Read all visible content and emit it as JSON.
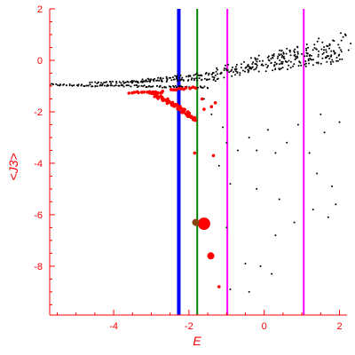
{
  "chart_data": {
    "type": "scatter",
    "xlabel": "E",
    "ylabel": "<J3>",
    "xlim": [
      -5.7,
      2.2
    ],
    "ylim": [
      -9.9,
      2.0
    ],
    "x_ticks": [
      -4,
      -2,
      0,
      2
    ],
    "y_ticks": [
      2,
      0,
      -2,
      -4,
      -6,
      -8
    ],
    "colors": {
      "axis": "#ff0000",
      "black_points": "#000000",
      "red_points": "#ff0000",
      "brown_point": "#8b4513",
      "line_blue": "#0000ff",
      "line_green": "#008000",
      "line_magenta": "#ff00ff"
    },
    "vertical_lines": [
      {
        "x": -2.27,
        "color": "#0000ff",
        "width": 4
      },
      {
        "x": -1.78,
        "color": "#008000",
        "width": 2
      },
      {
        "x": -0.98,
        "color": "#ff00ff",
        "width": 2
      },
      {
        "x": 1.05,
        "color": "#ff00ff",
        "width": 2
      }
    ],
    "series": [
      {
        "color": "#000000",
        "style": "band",
        "bands": [
          {
            "x0": -5.7,
            "y0": -0.95,
            "x1": -1.5,
            "y1": -1.05,
            "n": 110,
            "jitter": 0.04
          },
          {
            "x0": -4.6,
            "y0": -0.9,
            "x1": -1.2,
            "y1": -0.7,
            "n": 80,
            "jitter": 0.05
          },
          {
            "x0": -3.6,
            "y0": -0.85,
            "x1": -0.8,
            "y1": -0.4,
            "n": 70,
            "jitter": 0.06
          },
          {
            "x0": -1.4,
            "y0": -0.6,
            "x1": 2.1,
            "y1": 0.9,
            "n": 90,
            "jitter": 0.25
          },
          {
            "x0": -0.8,
            "y0": -0.4,
            "x1": 2.1,
            "y1": 0.1,
            "n": 90,
            "jitter": 0.18
          },
          {
            "x0": -0.3,
            "y0": -0.1,
            "x1": 2.1,
            "y1": 0.4,
            "n": 70,
            "jitter": 0.22
          }
        ],
        "points": [
          [
            -1.6,
            -1.5
          ],
          [
            -1.4,
            -2.1
          ],
          [
            -1.1,
            -2.6
          ],
          [
            -1.0,
            -3.2
          ],
          [
            -0.7,
            -3.5
          ],
          [
            -0.4,
            -3.0
          ],
          [
            -0.2,
            -3.5
          ],
          [
            0.1,
            -2.7
          ],
          [
            0.3,
            -3.6
          ],
          [
            0.6,
            -3.2
          ],
          [
            0.9,
            -2.5
          ],
          [
            1.5,
            -2.1
          ],
          [
            1.2,
            -3.6
          ],
          [
            1.6,
            -2.8
          ],
          [
            2.0,
            -2.4
          ],
          [
            -1.2,
            -4.1
          ],
          [
            -0.9,
            -4.8
          ],
          [
            -0.2,
            -5.0
          ],
          [
            0.4,
            -5.4
          ],
          [
            1.4,
            -4.4
          ],
          [
            1.8,
            -4.9
          ],
          [
            -1.0,
            -6.5
          ],
          [
            0.3,
            -6.8
          ],
          [
            1.3,
            -5.8
          ],
          [
            1.7,
            -6.1
          ],
          [
            -0.5,
            -7.9
          ],
          [
            -0.1,
            -8.0
          ],
          [
            0.2,
            -8.3
          ],
          [
            -0.9,
            -8.9
          ],
          [
            -0.4,
            -9.0
          ],
          [
            0.8,
            -6.3
          ],
          [
            1.9,
            -5.6
          ]
        ]
      },
      {
        "color": "#ff0000",
        "style": "cluster",
        "bands": [
          {
            "x0": -3.0,
            "y0": -1.25,
            "x1": -2.2,
            "y1": -1.9,
            "n": 60,
            "jitter": 0.06
          },
          {
            "x0": -2.2,
            "y0": -1.9,
            "x1": -1.85,
            "y1": -2.3,
            "n": 30,
            "jitter": 0.06
          },
          {
            "x0": -3.6,
            "y0": -1.25,
            "x1": -2.7,
            "y1": -1.25,
            "n": 14,
            "jitter": 0.03
          },
          {
            "x0": -2.5,
            "y0": -1.15,
            "x1": -1.8,
            "y1": -1.05,
            "n": 12,
            "jitter": 0.03
          }
        ],
        "points": [
          [
            -1.6,
            -1.9
          ],
          [
            -1.4,
            -1.8
          ],
          [
            -1.3,
            -1.65
          ],
          [
            -1.65,
            -1.5
          ],
          [
            -2.7,
            -1.2
          ],
          [
            -1.35,
            -3.7
          ],
          [
            -1.85,
            -3.6
          ],
          [
            -1.2,
            -8.8
          ]
        ]
      },
      {
        "color": "#ff0000",
        "style": "large",
        "points": [
          [
            -1.6,
            -6.35,
            7
          ],
          [
            -1.42,
            -7.6,
            4
          ]
        ]
      },
      {
        "color": "#8b4513",
        "style": "large",
        "points": [
          [
            -1.82,
            -6.3,
            4
          ]
        ]
      }
    ]
  }
}
